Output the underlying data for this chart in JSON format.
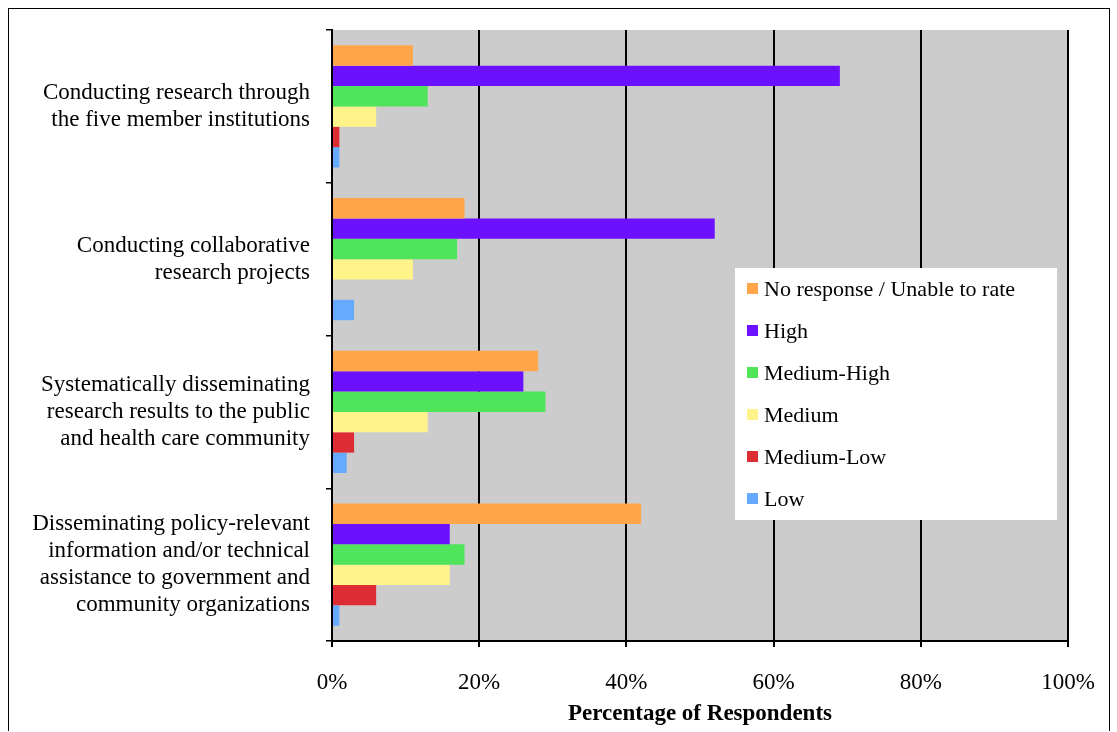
{
  "chart_data": {
    "type": "bar",
    "orientation": "horizontal",
    "xlabel": "Percentage of Respondents",
    "categories": [
      "Conducting research through the five member institutions",
      "Conducting collaborative research projects",
      "Systematically disseminating research results to the public and health care community",
      "Disseminating policy-relevant information and/or technical assistance to government and community organizations"
    ],
    "series": [
      {
        "name": "No response / Unable to rate",
        "color": "#ffa64a",
        "values": [
          11,
          18,
          28,
          42
        ]
      },
      {
        "name": "High",
        "color": "#6b11ff",
        "values": [
          69,
          52,
          26,
          16
        ]
      },
      {
        "name": "Medium-High",
        "color": "#50e45a",
        "values": [
          13,
          17,
          29,
          18
        ]
      },
      {
        "name": "Medium",
        "color": "#fff38a",
        "values": [
          6,
          11,
          13,
          16
        ]
      },
      {
        "name": "Medium-Low",
        "color": "#dd2c34",
        "values": [
          1,
          0,
          3,
          6
        ]
      },
      {
        "name": "Low",
        "color": "#66aaff",
        "values": [
          1,
          3,
          2,
          1
        ]
      }
    ],
    "xlim": [
      0,
      100
    ],
    "xticks": [
      {
        "value": 0,
        "label": "0%"
      },
      {
        "value": 20,
        "label": "20%"
      },
      {
        "value": 40,
        "label": "40%"
      },
      {
        "value": 60,
        "label": "60%"
      },
      {
        "value": 80,
        "label": "80%"
      },
      {
        "value": 100,
        "label": "100%"
      }
    ],
    "grid": "x",
    "legend": "right"
  }
}
